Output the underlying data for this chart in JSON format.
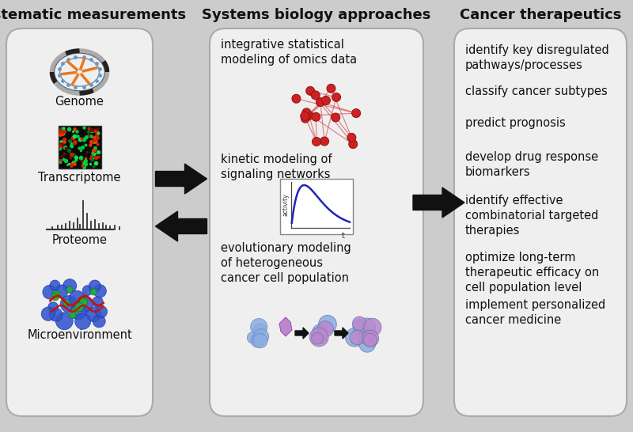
{
  "bg_color": "#cccccc",
  "panel_bg": "#f0f0f0",
  "panel_border": "#aaaaaa",
  "col1_header": "Systematic measurements",
  "col2_header": "Systems biology approaches",
  "col3_header": "Cancer therapeutics",
  "col2_items": [
    "integrative statistical\nmodeling of omics data",
    "kinetic modeling of\nsignaling networks",
    "evolutionary modeling\nof heterogeneous\ncancer cell population"
  ],
  "col3_items": [
    "identify key disregulated\npathways/processes",
    "classify cancer subtypes",
    "predict prognosis",
    "develop drug response\nbiomarkers",
    "identify effective\ncombinatorial targeted\ntherapies",
    "optimize long-term\ntherapeutic efficacy on\ncell population level",
    "implement personalized\ncancer medicine"
  ],
  "col1_labels": [
    "Genome",
    "Transcriptome",
    "Proteome",
    "Microenvironment"
  ],
  "header_fontsize": 13,
  "body_fontsize": 10.5,
  "text_color": "#111111",
  "arrow_color": "#111111"
}
